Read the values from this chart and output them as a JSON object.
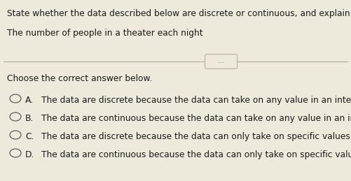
{
  "title_line1": "State whether the data described below are discrete or continuous, and explain why.",
  "title_line2": "The number of people in a theater each night",
  "divider_label": "...",
  "section_label": "Choose the correct answer below.",
  "options": [
    {
      "letter": "A.",
      "text": "  The data are discrete because the data can take on any value in an interval."
    },
    {
      "letter": "B.",
      "text": "  The data are continuous because the data can take on any value in an interval."
    },
    {
      "letter": "C.",
      "text": "  The data are discrete because the data can only take on specific values."
    },
    {
      "letter": "D.",
      "text": "  The data are continuous because the data can only take on specific values."
    }
  ],
  "bg_color": "#edeadb",
  "text_color": "#1a1a1a",
  "font_size_title": 8.8,
  "font_size_body": 8.8,
  "fig_width": 5.01,
  "fig_height": 2.59,
  "dpi": 100
}
